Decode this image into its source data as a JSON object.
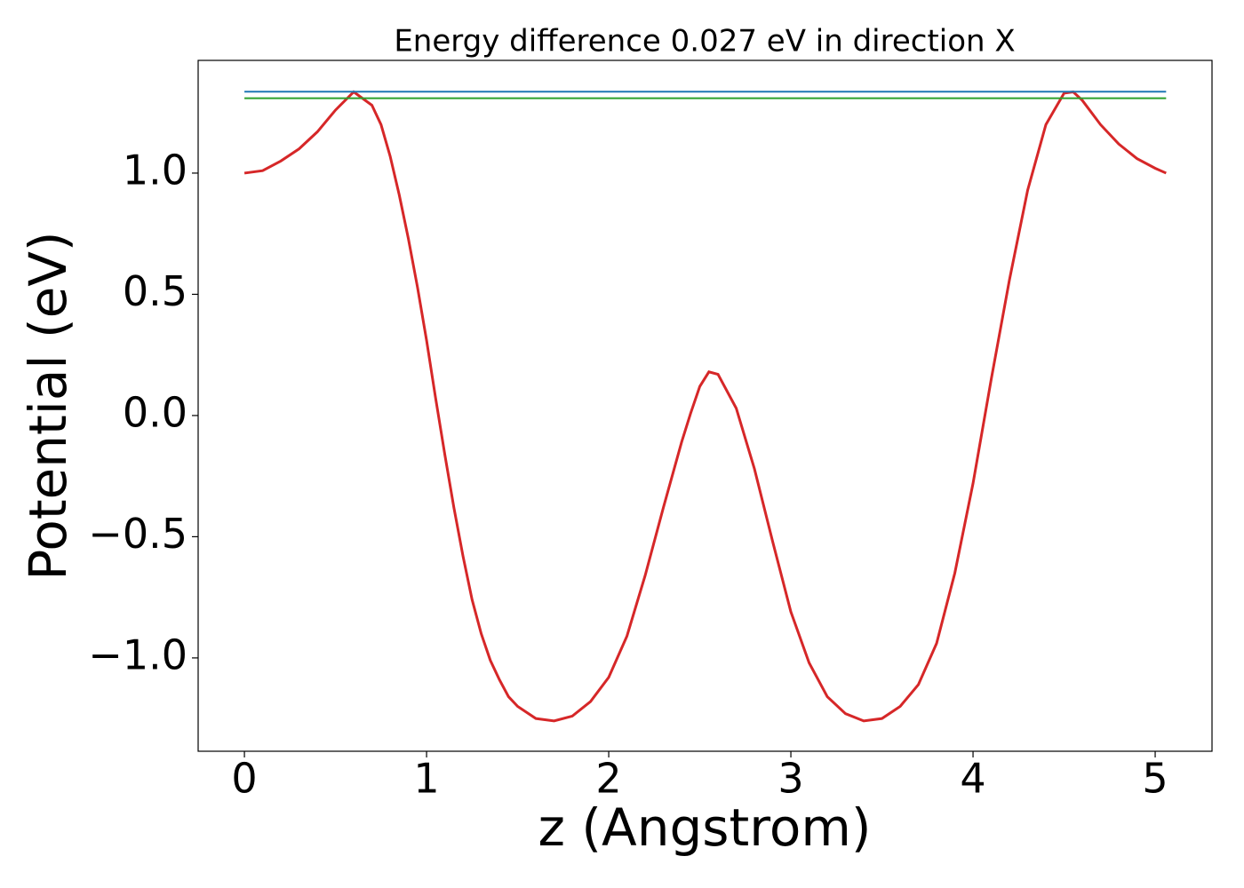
{
  "chart_data": {
    "type": "line",
    "title": "Energy difference 0.027 eV in direction X",
    "x_label": "z (Angstrom)",
    "y_label": "Potential (eV)",
    "xlim": [
      -0.254,
      5.312
    ],
    "ylim": [
      -1.385,
      1.465
    ],
    "xticks": [
      0,
      1,
      2,
      3,
      4,
      5
    ],
    "yticks": [
      {
        "value": -1.0,
        "label": "−1.0"
      },
      {
        "value": -0.5,
        "label": "−0.5"
      },
      {
        "value": 0.0,
        "label": "0.0"
      },
      0.5,
      {
        "value": 1.0,
        "label": "1.0"
      }
    ],
    "series": [
      {
        "color": "#d62728",
        "x": [
          0,
          0.1,
          0.2,
          0.3,
          0.4,
          0.5,
          0.6,
          0.7,
          0.75,
          0.8,
          0.85,
          0.9,
          0.95,
          1.0,
          1.05,
          1.1,
          1.15,
          1.2,
          1.25,
          1.3,
          1.35,
          1.4,
          1.45,
          1.5,
          1.6,
          1.7,
          1.8,
          1.9,
          2.0,
          2.1,
          2.2,
          2.3,
          2.4,
          2.45,
          2.5,
          2.55,
          2.6,
          2.7,
          2.8,
          2.9,
          3.0,
          3.1,
          3.2,
          3.3,
          3.4,
          3.5,
          3.6,
          3.7,
          3.8,
          3.9,
          4.0,
          4.1,
          4.2,
          4.3,
          4.4,
          4.5,
          4.55,
          4.6,
          4.7,
          4.8,
          4.9,
          5.0,
          5.06
        ],
        "values": [
          1.0,
          1.01,
          1.05,
          1.1,
          1.17,
          1.26,
          1.335,
          1.28,
          1.2,
          1.07,
          0.91,
          0.73,
          0.53,
          0.31,
          0.07,
          -0.16,
          -0.38,
          -0.58,
          -0.76,
          -0.9,
          -1.01,
          -1.09,
          -1.16,
          -1.2,
          -1.25,
          -1.26,
          -1.24,
          -1.18,
          -1.08,
          -0.91,
          -0.66,
          -0.38,
          -0.11,
          0.01,
          0.12,
          0.18,
          0.17,
          0.03,
          -0.22,
          -0.52,
          -0.81,
          -1.02,
          -1.16,
          -1.23,
          -1.26,
          -1.25,
          -1.2,
          -1.11,
          -0.94,
          -0.65,
          -0.28,
          0.15,
          0.56,
          0.93,
          1.2,
          1.33,
          1.335,
          1.3,
          1.2,
          1.12,
          1.06,
          1.02,
          1.0
        ]
      },
      {
        "color": "#1f77b4",
        "x": [
          0,
          5.06
        ],
        "values": [
          1.336,
          1.336
        ]
      },
      {
        "color": "#2ca02c",
        "x": [
          0,
          5.06
        ],
        "values": [
          1.309,
          1.309
        ]
      }
    ]
  }
}
